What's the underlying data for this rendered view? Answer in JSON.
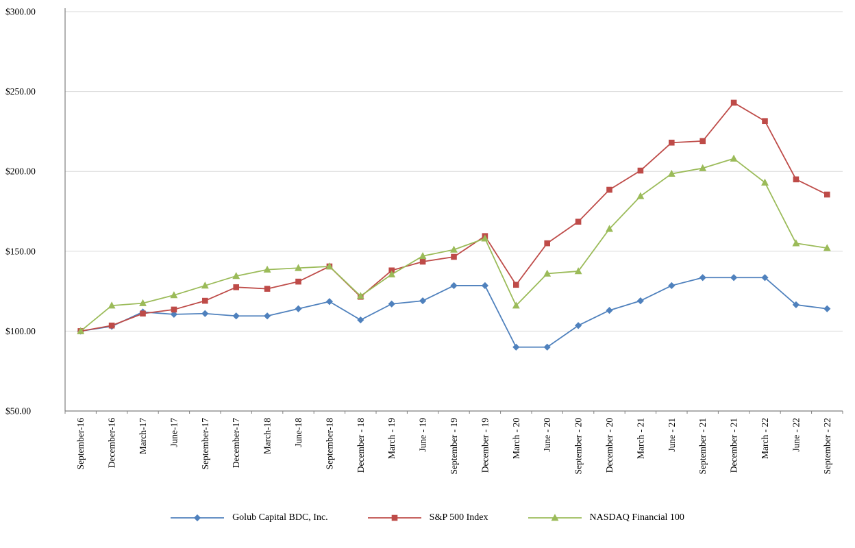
{
  "chart_data": {
    "type": "line",
    "title": "",
    "xlabel": "",
    "ylabel": "",
    "ylim": [
      50,
      300
    ],
    "grid": "horizontal",
    "legend_position": "bottom",
    "axis_color": "#7f7f7f",
    "grid_color": "#d9d9d9",
    "text_color": "#000000",
    "yticks": [
      {
        "label": "$50.00",
        "value": 50
      },
      {
        "label": "$100.00",
        "value": 100
      },
      {
        "label": "$150.00",
        "value": 150
      },
      {
        "label": "$200.00",
        "value": 200
      },
      {
        "label": "$250.00",
        "value": 250
      },
      {
        "label": "$300.00",
        "value": 300
      }
    ],
    "categories": [
      "September-16",
      "December-16",
      "March-17",
      "June-17",
      "September-17",
      "December-17",
      "March-18",
      "June-18",
      "September-18",
      "December - 18",
      "March - 19",
      "June - 19",
      "September - 19",
      "December - 19",
      "March - 20",
      "June - 20",
      "September - 20",
      "December - 20",
      "March - 21",
      "June - 21",
      "September - 21",
      "December - 21",
      "March - 22",
      "June - 22",
      "September - 22"
    ],
    "series": [
      {
        "name": "Golub Capital BDC, Inc.",
        "color": "#4F81BD",
        "marker": "diamond",
        "values": [
          100,
          103,
          112,
          110.5,
          111,
          109.5,
          109.5,
          114,
          118.5,
          107,
          117,
          119,
          128.5,
          128.5,
          90,
          90,
          103.5,
          113,
          119,
          128.5,
          133.5,
          133.5,
          133.5,
          116.5,
          114
        ]
      },
      {
        "name": "S&P 500 Index",
        "color": "#BE4B48",
        "marker": "square",
        "values": [
          100,
          103.5,
          111,
          113.5,
          119,
          127.5,
          126.5,
          131,
          140.5,
          121.5,
          138,
          143.5,
          146.5,
          159.5,
          129,
          155,
          168.5,
          188.5,
          200.5,
          218,
          219,
          243,
          231.5,
          195,
          185.5
        ]
      },
      {
        "name": "NASDAQ Financial 100",
        "color": "#9BBB59",
        "marker": "triangle",
        "values": [
          100,
          116,
          117.5,
          122.5,
          128.5,
          134.5,
          138.5,
          139.5,
          140.5,
          122,
          135.5,
          147,
          151,
          158,
          116,
          136,
          137.5,
          164,
          184.5,
          198.5,
          202,
          208,
          193,
          155,
          152
        ]
      }
    ]
  }
}
